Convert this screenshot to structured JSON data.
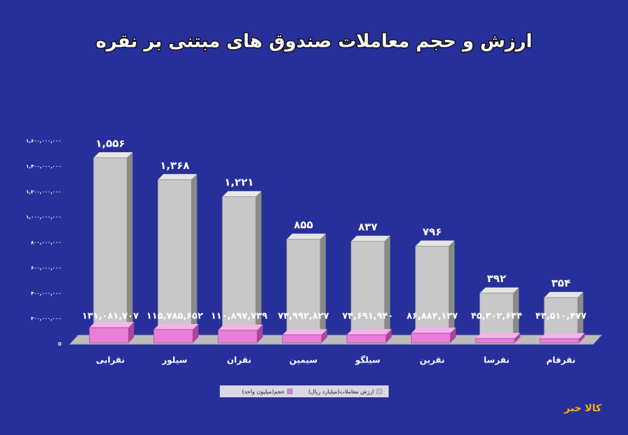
{
  "chart_data": {
    "type": "bar3d",
    "title": "ارزش و حجم معاملات صندوق های مبتنی بر نقره",
    "categories": [
      "نقرابی",
      "سیلور",
      "نقران",
      "سیمین",
      "سیلگو",
      "نقرین",
      "نقرسا",
      "نقرفام"
    ],
    "series": [
      {
        "name": "ارزش معاملات(میلیارد ریال)",
        "color": "#c8c8c8",
        "axis": "y2",
        "values": [
          1556,
          1368,
          1221,
          855,
          837,
          796,
          392,
          354
        ],
        "value_labels": [
          "۱,۵۵۶",
          "۱,۳۶۸",
          "۱,۲۲۱",
          "۸۵۵",
          "۸۳۷",
          "۷۹۶",
          "۳۹۲",
          "۳۵۴"
        ]
      },
      {
        "name": "حجم(میلیون واحد)",
        "color": "#e77fd6",
        "values": [
          131081707,
          115785652,
          110897739,
          73992827,
          74691940,
          86884137,
          45302634,
          43510477
        ],
        "value_labels": [
          "۱۳۱,۰۸۱,۷۰۷",
          "۱۱۵,۷۸۵,۶۵۲",
          "۱۱۰,۸۹۷,۷۳۹",
          "۷۳,۹۹۲,۸۲۷",
          "۷۴,۶۹۱,۹۴۰",
          "۸۶,۸۸۴,۱۳۷",
          "۴۵,۳۰۲,۶۳۴",
          "۴۳,۵۱۰,۴۷۷"
        ]
      }
    ],
    "ylim": [
      0,
      1600000000
    ],
    "yticks": [
      0,
      {
        "value": 200000000,
        "label": "۲۰۰,۰۰۰,۰۰۰"
      },
      {
        "value": 400000000,
        "label": "۴۰۰,۰۰۰,۰۰۰"
      },
      {
        "value": 600000000,
        "label": "۶۰۰,۰۰۰,۰۰۰"
      },
      {
        "value": 800000000,
        "label": "۸۰۰,۰۰۰,۰۰۰"
      },
      {
        "value": 1000000000,
        "label": "۱,۰۰۰,۰۰۰,۰۰۰"
      },
      {
        "value": 1200000000,
        "label": "۱,۲۰۰,۰۰۰,۰۰۰"
      },
      {
        "value": 1400000000,
        "label": "۱,۴۰۰,۰۰۰,۰۰۰"
      },
      {
        "value": 1600000000,
        "label": "۱,۶۰۰,۰۰۰,۰۰۰"
      }
    ],
    "y2lim": [
      0,
      1700
    ],
    "grid": false,
    "legend": "bottom",
    "logo": "کالا خبر"
  }
}
